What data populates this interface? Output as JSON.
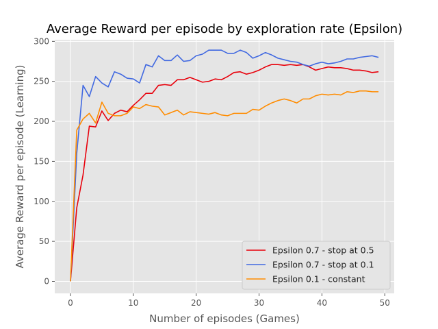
{
  "chart_data": {
    "type": "line",
    "title": "Average Reward per episode by exploration rate (Epsilon)",
    "xlabel": "Number of episodes (Games)",
    "ylabel": "Average Reward per episode (Learning)",
    "xlim": [
      -2.5,
      51.5
    ],
    "ylim": [
      -15,
      302
    ],
    "xticks": [
      0,
      10,
      20,
      30,
      40,
      50
    ],
    "yticks": [
      0,
      50,
      100,
      150,
      200,
      250,
      300
    ],
    "grid": true,
    "legend_position": "bottom-right",
    "x": [
      0,
      1,
      2,
      3,
      4,
      5,
      6,
      7,
      8,
      9,
      10,
      11,
      12,
      13,
      14,
      15,
      16,
      17,
      18,
      19,
      20,
      21,
      22,
      23,
      24,
      25,
      26,
      27,
      28,
      29,
      30,
      31,
      32,
      33,
      34,
      35,
      36,
      37,
      38,
      39,
      40,
      41,
      42,
      43,
      44,
      45,
      46,
      47,
      48,
      49
    ],
    "series": [
      {
        "name": "Epsilon 0.7 - stop at 0.5",
        "color": "#e8000b",
        "values": [
          0,
          92,
          133,
          194,
          193,
          213,
          201,
          210,
          214,
          212,
          220,
          227,
          235,
          235,
          245,
          246,
          245,
          252,
          252,
          255,
          252,
          249,
          250,
          253,
          252,
          256,
          261,
          262,
          259,
          261,
          264,
          268,
          271,
          271,
          270,
          271,
          270,
          271,
          268,
          264,
          266,
          268,
          267,
          267,
          266,
          264,
          264,
          263,
          261,
          262
        ]
      },
      {
        "name": "Epsilon 0.7 - stop at 0.1",
        "color": "#4169e1",
        "values": [
          0,
          160,
          245,
          231,
          256,
          248,
          243,
          262,
          259,
          254,
          253,
          248,
          271,
          268,
          282,
          276,
          276,
          283,
          275,
          276,
          282,
          284,
          289,
          289,
          289,
          285,
          285,
          289,
          286,
          279,
          282,
          286,
          283,
          279,
          277,
          275,
          274,
          271,
          269,
          272,
          274,
          272,
          273,
          275,
          278,
          278,
          280,
          281,
          282,
          280
        ]
      },
      {
        "name": "Epsilon 0.1 - constant",
        "color": "#ff8c00",
        "values": [
          0,
          189,
          203,
          210,
          198,
          224,
          210,
          207,
          207,
          210,
          218,
          216,
          221,
          219,
          218,
          208,
          211,
          214,
          208,
          212,
          211,
          210,
          209,
          211,
          208,
          207,
          210,
          210,
          210,
          215,
          214,
          219,
          223,
          226,
          228,
          226,
          223,
          228,
          228,
          232,
          234,
          233,
          234,
          233,
          237,
          236,
          238,
          238,
          237,
          237
        ]
      }
    ]
  }
}
